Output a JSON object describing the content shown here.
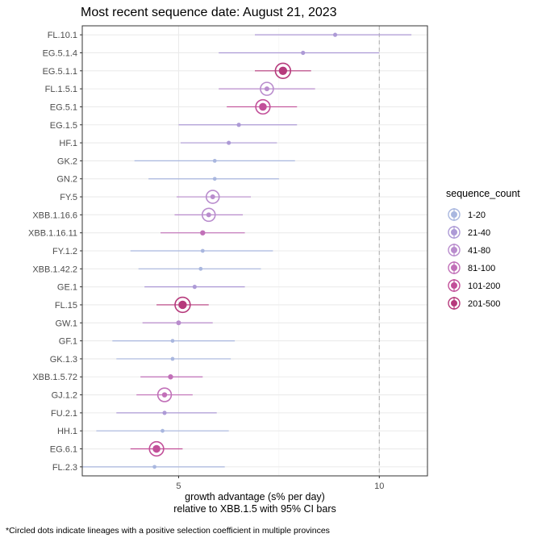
{
  "chart_data": {
    "type": "scatter",
    "title": "Most recent sequence date: August 21, 2023",
    "xlabel_line1": "growth advantage (s% per day)",
    "xlabel_line2": "relative to  XBB.1.5  with 95% CI bars",
    "footnote": "*Circled dots indicate lineages with a positive selection coefficient in multiple provinces",
    "xlim": [
      2.6,
      11.2
    ],
    "x_ticks": [
      5,
      10
    ],
    "reference_line_x": 10,
    "grid": true,
    "legend": {
      "title": "sequence_count",
      "placement": "right",
      "entries": [
        {
          "label": "1-20",
          "color": "#a9b7df"
        },
        {
          "label": "21-40",
          "color": "#ad9ad6"
        },
        {
          "label": "41-80",
          "color": "#b98ccd"
        },
        {
          "label": "81-100",
          "color": "#c170b8"
        },
        {
          "label": "101-200",
          "color": "#c24f99"
        },
        {
          "label": "201-500",
          "color": "#b63a7c"
        }
      ]
    },
    "lineages": [
      {
        "name": "FL.10.1",
        "value": 8.9,
        "low": 6.9,
        "high": 10.8,
        "count_class": 1,
        "circled": false
      },
      {
        "name": "EG.5.1.4",
        "value": 8.1,
        "low": 6.0,
        "high": 10.0,
        "count_class": 1,
        "circled": false
      },
      {
        "name": "EG.5.1.1",
        "value": 7.6,
        "low": 6.9,
        "high": 8.3,
        "count_class": 5,
        "circled": true
      },
      {
        "name": "FL.1.5.1",
        "value": 7.2,
        "low": 6.0,
        "high": 8.4,
        "count_class": 2,
        "circled": true
      },
      {
        "name": "EG.5.1",
        "value": 7.1,
        "low": 6.2,
        "high": 7.95,
        "count_class": 4,
        "circled": true
      },
      {
        "name": "EG.1.5",
        "value": 6.5,
        "low": 5.0,
        "high": 7.95,
        "count_class": 1,
        "circled": false
      },
      {
        "name": "HF.1",
        "value": 6.25,
        "low": 5.05,
        "high": 7.45,
        "count_class": 1,
        "circled": false
      },
      {
        "name": "GK.2",
        "value": 5.9,
        "low": 3.9,
        "high": 7.9,
        "count_class": 0,
        "circled": false
      },
      {
        "name": "GN.2",
        "value": 5.9,
        "low": 4.25,
        "high": 7.5,
        "count_class": 0,
        "circled": false
      },
      {
        "name": "FY.5",
        "value": 5.85,
        "low": 4.95,
        "high": 6.8,
        "count_class": 2,
        "circled": true
      },
      {
        "name": "XBB.1.16.6",
        "value": 5.75,
        "low": 4.9,
        "high": 6.6,
        "count_class": 2,
        "circled": true
      },
      {
        "name": "XBB.1.16.11",
        "value": 5.6,
        "low": 4.55,
        "high": 6.65,
        "count_class": 3,
        "circled": false
      },
      {
        "name": "FY.1.2",
        "value": 5.6,
        "low": 3.8,
        "high": 7.35,
        "count_class": 0,
        "circled": false
      },
      {
        "name": "XBB.1.42.2",
        "value": 5.55,
        "low": 4.0,
        "high": 7.05,
        "count_class": 0,
        "circled": false
      },
      {
        "name": "GE.1",
        "value": 5.4,
        "low": 4.15,
        "high": 6.65,
        "count_class": 1,
        "circled": false
      },
      {
        "name": "FL.15",
        "value": 5.1,
        "low": 4.45,
        "high": 5.75,
        "count_class": 5,
        "circled": true
      },
      {
        "name": "GW.1",
        "value": 5.0,
        "low": 4.1,
        "high": 5.85,
        "count_class": 2,
        "circled": false
      },
      {
        "name": "GF.1",
        "value": 4.85,
        "low": 3.35,
        "high": 6.4,
        "count_class": 0,
        "circled": false
      },
      {
        "name": "GK.1.3",
        "value": 4.85,
        "low": 3.45,
        "high": 6.3,
        "count_class": 0,
        "circled": false
      },
      {
        "name": "XBB.1.5.72",
        "value": 4.8,
        "low": 4.05,
        "high": 5.6,
        "count_class": 3,
        "circled": false
      },
      {
        "name": "GJ.1.2",
        "value": 4.65,
        "low": 3.95,
        "high": 5.35,
        "count_class": 3,
        "circled": true
      },
      {
        "name": "FU.2.1",
        "value": 4.65,
        "low": 3.45,
        "high": 5.95,
        "count_class": 1,
        "circled": false
      },
      {
        "name": "HH.1",
        "value": 4.6,
        "low": 2.95,
        "high": 6.25,
        "count_class": 0,
        "circled": false
      },
      {
        "name": "EG.6.1",
        "value": 4.45,
        "low": 3.8,
        "high": 5.1,
        "count_class": 4,
        "circled": true
      },
      {
        "name": "FL.2.3",
        "value": 4.4,
        "low": 2.6,
        "high": 6.15,
        "count_class": 0,
        "circled": false
      }
    ]
  }
}
